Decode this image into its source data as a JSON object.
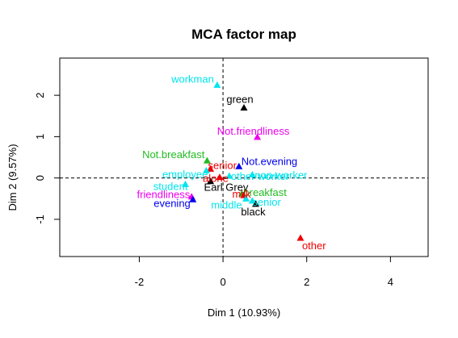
{
  "chart_data": {
    "type": "scatter",
    "title": "MCA factor map",
    "xlabel": "Dim 1 (10.93%)",
    "ylabel": "Dim 2 (9.57%)",
    "xlim": [
      -3.9,
      4.9
    ],
    "ylim": [
      -1.9,
      2.9
    ],
    "xticks": [
      -2,
      0,
      2,
      4
    ],
    "yticks": [
      -1,
      0,
      1,
      2
    ],
    "xtick_labels": [
      "-2",
      "0",
      "2",
      "4"
    ],
    "ytick_labels": [
      "-1",
      "0",
      "1",
      "2"
    ],
    "reference_lines": {
      "x": 0,
      "y": 0,
      "style": "dashed"
    },
    "grid": false,
    "marker": "triangle",
    "points": [
      {
        "label": "workman",
        "x": -0.14,
        "y": 2.25,
        "color": "#00e5ee",
        "anchor": "end",
        "dx": -4,
        "dy": -3
      },
      {
        "label": "green",
        "x": 0.5,
        "y": 1.7,
        "color": "#000000",
        "anchor": "middle",
        "dx": -5,
        "dy": -6
      },
      {
        "label": "Not.friendliness",
        "x": 0.82,
        "y": 0.99,
        "color": "#ee00ee",
        "anchor": "middle",
        "dx": -5,
        "dy": -3
      },
      {
        "label": "Not.breakfast",
        "x": -0.38,
        "y": 0.42,
        "color": "#22bb22",
        "anchor": "end",
        "dx": -3,
        "dy": -3
      },
      {
        "label": "Not.evening",
        "x": 0.38,
        "y": 0.28,
        "color": "#0000ee",
        "anchor": "start",
        "dx": 3,
        "dy": -2
      },
      {
        "label": "senior",
        "x": -0.3,
        "y": 0.22,
        "color": "#ee0000",
        "anchor": "start",
        "dx": -3,
        "dy": 0
      },
      {
        "label": "employee",
        "x": -0.4,
        "y": 0.18,
        "color": "#00e5ee",
        "anchor": "end",
        "dx": 2,
        "dy": 9
      },
      {
        "label": "other worker",
        "x": 0.15,
        "y": 0.05,
        "color": "#00e5ee",
        "anchor": "start",
        "dx": 2,
        "dy": 5
      },
      {
        "label": "non-worker",
        "x": 0.7,
        "y": 0.08,
        "color": "#00e5ee",
        "anchor": "start",
        "dx": 3,
        "dy": 5
      },
      {
        "label": "alone",
        "x": -0.08,
        "y": 0.02,
        "color": "#ee0000",
        "anchor": "middle",
        "dx": -5,
        "dy": 6
      },
      {
        "label": "Earl Grey",
        "x": -0.3,
        "y": -0.08,
        "color": "#000000",
        "anchor": "start",
        "dx": -8,
        "dy": 12
      },
      {
        "label": "student",
        "x": -0.9,
        "y": -0.15,
        "color": "#00e5ee",
        "anchor": "end",
        "dx": 3,
        "dy": 7
      },
      {
        "label": "friendliness",
        "x": -0.75,
        "y": -0.45,
        "color": "#ee00ee",
        "anchor": "end",
        "dx": -2,
        "dy": 2
      },
      {
        "label": "evening",
        "x": -0.72,
        "y": -0.52,
        "color": "#0000ee",
        "anchor": "end",
        "dx": -3,
        "dy": 9
      },
      {
        "label": "breakfast",
        "x": 0.45,
        "y": -0.38,
        "color": "#22bb22",
        "anchor": "start",
        "dx": 2,
        "dy": 3
      },
      {
        "label": "milk",
        "x": 0.5,
        "y": -0.42,
        "color": "#ee0000",
        "anchor": "middle",
        "dx": -3,
        "dy": 3
      },
      {
        "label": "middle",
        "x": 0.55,
        "y": -0.5,
        "color": "#00e5ee",
        "anchor": "end",
        "dx": -5,
        "dy": 12
      },
      {
        "label": "senior",
        "x": 0.7,
        "y": -0.55,
        "color": "#00e5ee",
        "anchor": "start",
        "dx": 0,
        "dy": 6
      },
      {
        "label": "black",
        "x": 0.78,
        "y": -0.63,
        "color": "#000000",
        "anchor": "middle",
        "dx": -3,
        "dy": 14
      },
      {
        "label": "other",
        "x": 1.85,
        "y": -1.45,
        "color": "#ee0000",
        "anchor": "start",
        "dx": 2,
        "dy": 14
      }
    ]
  }
}
